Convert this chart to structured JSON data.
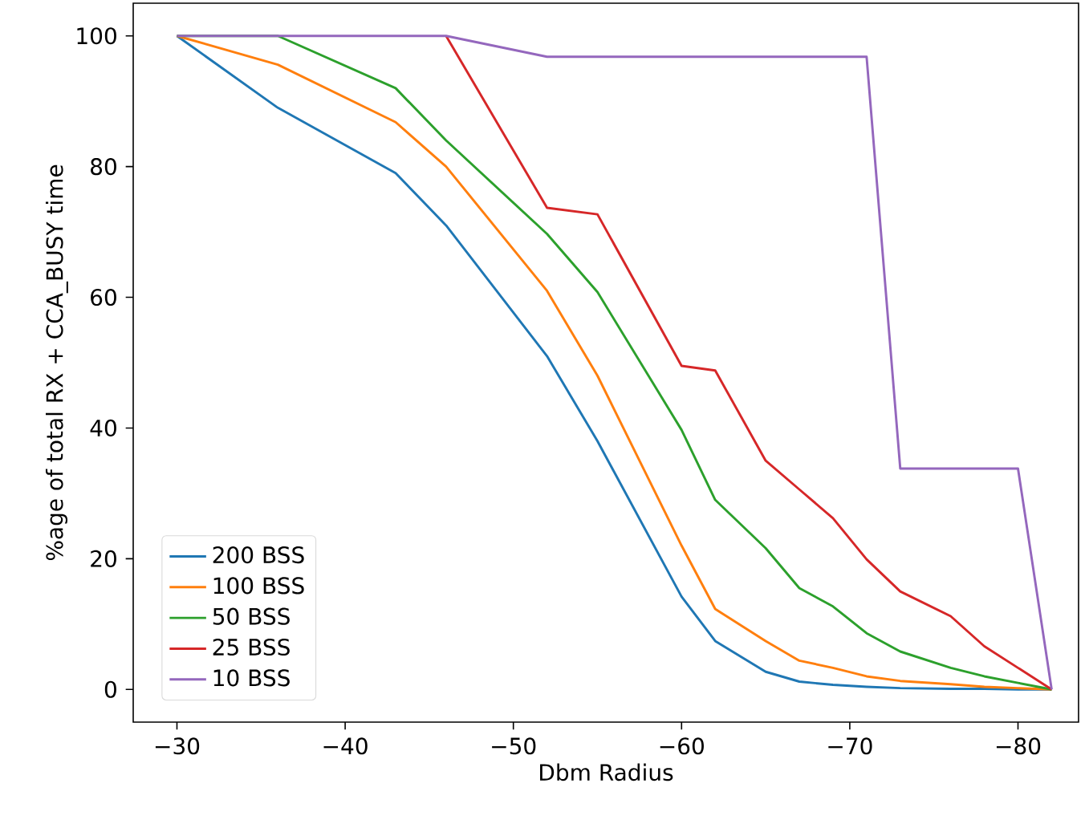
{
  "chart_data": {
    "type": "line",
    "xlabel": "Dbm Radius",
    "ylabel": "%age of total RX + CCA_BUSY time",
    "x": [
      -30,
      -36,
      -43,
      -46,
      -52,
      -55,
      -60,
      -62,
      -65,
      -67,
      -69,
      -71,
      -73,
      -76,
      -78,
      -80,
      -82
    ],
    "series": [
      {
        "name": "200 BSS",
        "color": "#1f77b4",
        "values": [
          100,
          89,
          79,
          71,
          51,
          38,
          14.2,
          7.4,
          2.7,
          1.2,
          0.7,
          0.4,
          0.2,
          0.1,
          0.1,
          0,
          0
        ]
      },
      {
        "name": "100 BSS",
        "color": "#ff7f0e",
        "values": [
          100,
          95.6,
          86.8,
          80,
          61,
          48,
          22,
          12.3,
          7.4,
          4.4,
          3.3,
          2,
          1.3,
          0.8,
          0.4,
          0.2,
          0
        ]
      },
      {
        "name": "50 BSS",
        "color": "#2ca02c",
        "values": [
          100,
          100,
          92,
          84,
          69.7,
          60.8,
          39.7,
          29,
          21.6,
          15.5,
          12.7,
          8.6,
          5.8,
          3.3,
          2,
          1,
          0
        ]
      },
      {
        "name": "25 BSS",
        "color": "#d62728",
        "values": [
          null,
          null,
          null,
          100,
          73.7,
          72.7,
          49.5,
          48.8,
          35,
          30.6,
          26.2,
          19.9,
          15,
          11.2,
          6.6,
          3.3,
          0
        ]
      },
      {
        "name": "10 BSS",
        "color": "#9467bd",
        "values": [
          100,
          100,
          100,
          100,
          96.8,
          96.8,
          96.8,
          96.8,
          96.8,
          96.8,
          96.8,
          96.8,
          33.8,
          33.8,
          33.8,
          33.8,
          0
        ]
      }
    ],
    "xlim": [
      -27.4,
      -83.6
    ],
    "ylim": [
      -5,
      105
    ],
    "xticks": [
      {
        "value": -30,
        "label": "−30"
      },
      {
        "value": -40,
        "label": "−40"
      },
      {
        "value": -50,
        "label": "−50"
      },
      {
        "value": -60,
        "label": "−60"
      },
      {
        "value": -70,
        "label": "−70"
      },
      {
        "value": -80,
        "label": "−80"
      }
    ],
    "yticks": [
      0,
      20,
      40,
      60,
      80,
      100
    ],
    "legend": "bottom left",
    "grid": false,
    "marker": "none",
    "line_style": "solid"
  }
}
